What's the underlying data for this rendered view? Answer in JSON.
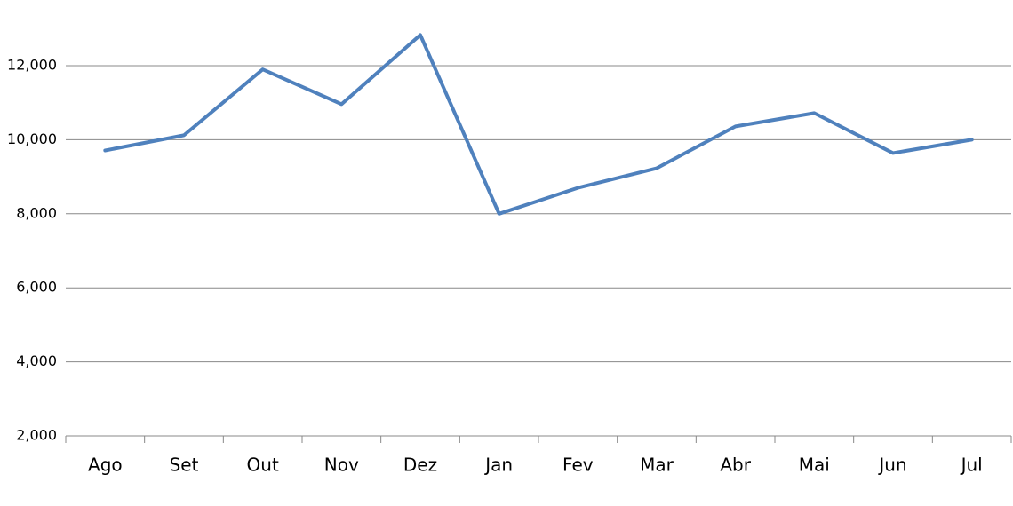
{
  "chart_data": {
    "type": "line",
    "categories": [
      "Ago",
      "Set",
      "Out",
      "Nov",
      "Dez",
      "Jan",
      "Fev",
      "Mar",
      "Abr",
      "Mai",
      "Jun",
      "Jul"
    ],
    "series": [
      {
        "color": "#4f81bd",
        "values": [
          9710,
          10120,
          11900,
          10960,
          12830,
          8000,
          8700,
          9230,
          10360,
          10720,
          9640,
          10000
        ]
      }
    ],
    "ylim": [
      2000,
      13000
    ],
    "yticks": [
      {
        "value": 2000,
        "label": "2,000"
      },
      {
        "value": 4000,
        "label": "4,000"
      },
      {
        "value": 6000,
        "label": "6,000"
      },
      {
        "value": 8000,
        "label": "8,000"
      },
      {
        "value": 10000,
        "label": "10,000"
      },
      {
        "value": 12000,
        "label": "12,000"
      }
    ],
    "grid": true
  }
}
